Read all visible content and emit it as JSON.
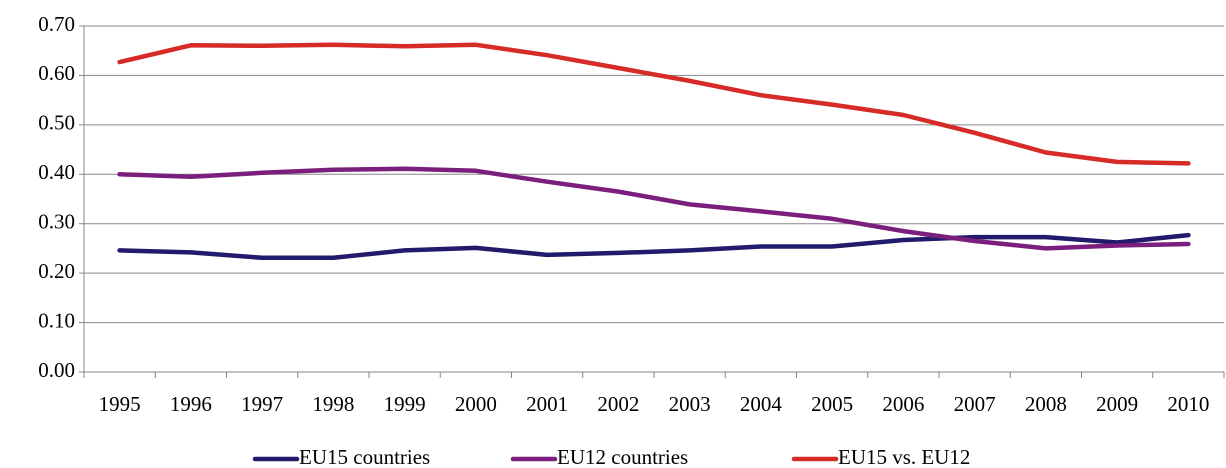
{
  "chart_data": {
    "type": "line",
    "categories": [
      "1995",
      "1996",
      "1997",
      "1998",
      "1999",
      "2000",
      "2001",
      "2002",
      "2003",
      "2004",
      "2005",
      "2006",
      "2007",
      "2008",
      "2009",
      "2010"
    ],
    "series": [
      {
        "name": "EU15 countries",
        "color": "#221a6b",
        "values": [
          0.246,
          0.242,
          0.231,
          0.231,
          0.246,
          0.251,
          0.237,
          0.241,
          0.246,
          0.254,
          0.254,
          0.267,
          0.273,
          0.273,
          0.262,
          0.277
        ]
      },
      {
        "name": "EU12 countries",
        "color": "#7b1f7e",
        "values": [
          0.4,
          0.395,
          0.403,
          0.409,
          0.411,
          0.407,
          0.385,
          0.365,
          0.339,
          0.325,
          0.31,
          0.285,
          0.265,
          0.25,
          0.256,
          0.259
        ]
      },
      {
        "name": "EU15 vs. EU12",
        "color": "#d62b27",
        "values": [
          0.627,
          0.661,
          0.66,
          0.662,
          0.659,
          0.662,
          0.641,
          0.615,
          0.589,
          0.56,
          0.541,
          0.52,
          0.484,
          0.444,
          0.425,
          0.422
        ]
      }
    ],
    "ylim": [
      0,
      0.7
    ],
    "yticks": [
      {
        "value": 0,
        "label": "0.00"
      },
      {
        "value": 0.1,
        "label": "0.10"
      },
      {
        "value": 0.2,
        "label": "0.20"
      },
      {
        "value": 0.3,
        "label": "0.30"
      },
      {
        "value": 0.4,
        "label": "0.40"
      },
      {
        "value": 0.5,
        "label": "0.50"
      },
      {
        "value": 0.6,
        "label": "0.60"
      },
      {
        "value": 0.7,
        "label": "0.70"
      }
    ],
    "grid": true,
    "legend": "bottom"
  }
}
